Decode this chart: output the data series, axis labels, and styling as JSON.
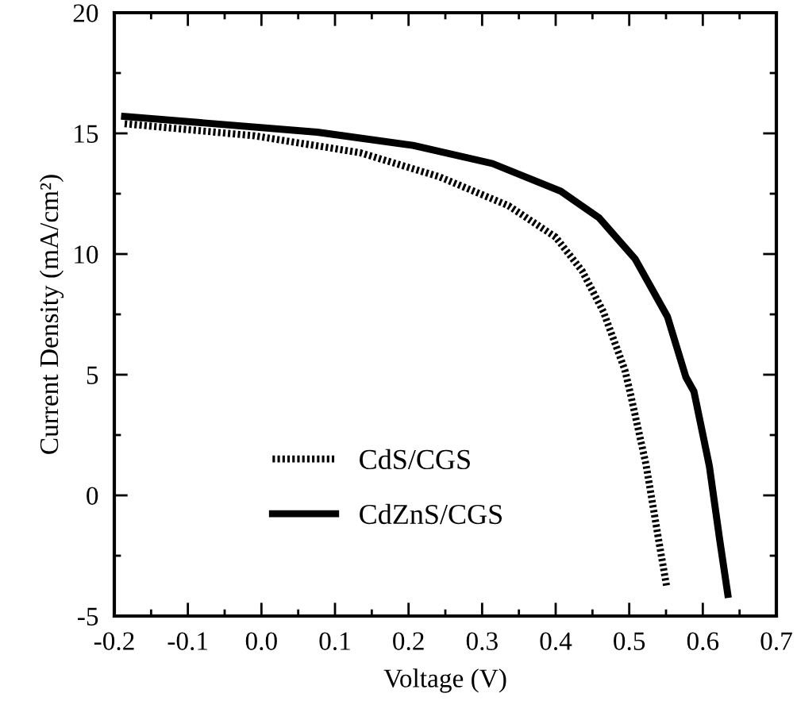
{
  "chart_data": {
    "type": "line",
    "xlabel": "Voltage (V)",
    "ylabel": "Current Density (mA/cm²)",
    "xlim": [
      -0.2,
      0.7
    ],
    "xticks": [
      {
        "value": -0.2,
        "label": "-0.2"
      },
      {
        "value": -0.1,
        "label": "-0.1"
      },
      {
        "value": 0.0,
        "label": "0.0"
      },
      0.1,
      0.2,
      0.3,
      0.4,
      0.5,
      0.6,
      0.7
    ],
    "ylim": [
      -5,
      20
    ],
    "yticks": [
      {
        "value": -5,
        "label": "-5"
      },
      0,
      5,
      10,
      15,
      20
    ],
    "grid": false,
    "legend": "bottom left",
    "marker": "none",
    "series": [
      {
        "name": "CdS/CGS",
        "color": "#000000",
        "line_style": "dotted",
        "x": [
          -0.186,
          -0.01,
          0.134,
          0.242,
          0.336,
          0.4,
          0.436,
          0.465,
          0.494,
          0.501,
          0.523,
          0.54,
          0.551
        ],
        "values": [
          15.4,
          14.9,
          14.2,
          13.2,
          12.0,
          10.7,
          9.3,
          7.6,
          5.2,
          4.3,
          1.25,
          -1.85,
          -3.8
        ]
      },
      {
        "name": "CdZnS/CGS",
        "color": "#000000",
        "line_style": "solid",
        "x": [
          -0.186,
          0.076,
          0.206,
          0.314,
          0.407,
          0.459,
          0.508,
          0.552,
          0.577,
          0.588,
          0.609,
          0.623,
          0.634
        ],
        "values": [
          15.7,
          15.05,
          14.5,
          13.75,
          12.6,
          11.5,
          9.8,
          7.4,
          4.9,
          4.3,
          1.2,
          -1.85,
          -4.1
        ]
      }
    ]
  }
}
